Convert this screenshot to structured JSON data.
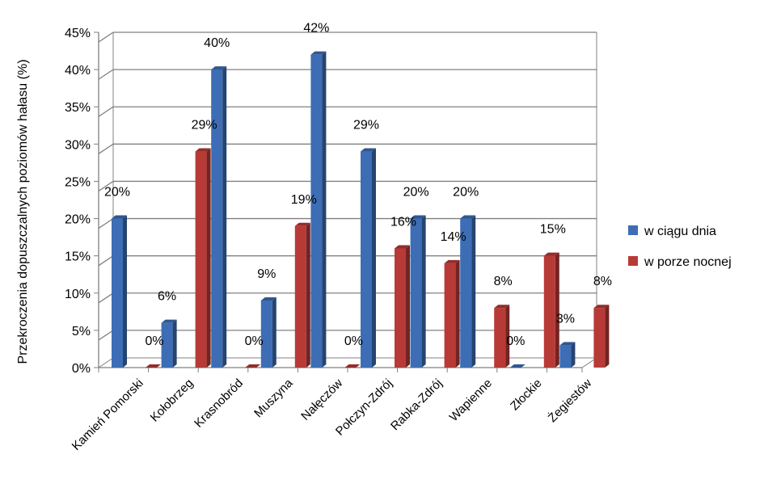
{
  "chart_data": {
    "type": "bar",
    "title": "",
    "xlabel": "",
    "ylabel": "Przekroczenia dopuszczalnych poziomów hałasu (%)",
    "ylim": [
      0,
      45
    ],
    "yticks": [
      0,
      5,
      10,
      15,
      20,
      25,
      30,
      35,
      40,
      45
    ],
    "ytick_suffix": "%",
    "grid": true,
    "legend_position": "right",
    "categories": [
      "Kamień Pomorski",
      "Kołobrzeg",
      "Krasnobród",
      "Muszyna",
      "Nałęczów",
      "Połczyn-Zdrój",
      "Rabka-Zdrój",
      "Wapienne",
      "Złockie",
      "Żegiestów"
    ],
    "series": [
      {
        "name": "w ciągu dnia",
        "color": "#3D6DB5",
        "values": [
          20,
          6,
          40,
          9,
          42,
          29,
          20,
          20,
          0,
          3
        ],
        "labels": [
          "20%",
          "6%",
          "40%",
          "9%",
          "42%",
          "29%",
          "20%",
          "20%",
          "0%",
          "3%"
        ]
      },
      {
        "name": "w porze nocnej",
        "color": "#B83A36",
        "values": [
          0,
          29,
          0,
          19,
          0,
          16,
          14,
          8,
          15,
          8
        ],
        "labels": [
          "0%",
          "29%",
          "0%",
          "19%",
          "0%",
          "16%",
          "14%",
          "8%",
          "15%",
          "8%"
        ]
      }
    ]
  }
}
